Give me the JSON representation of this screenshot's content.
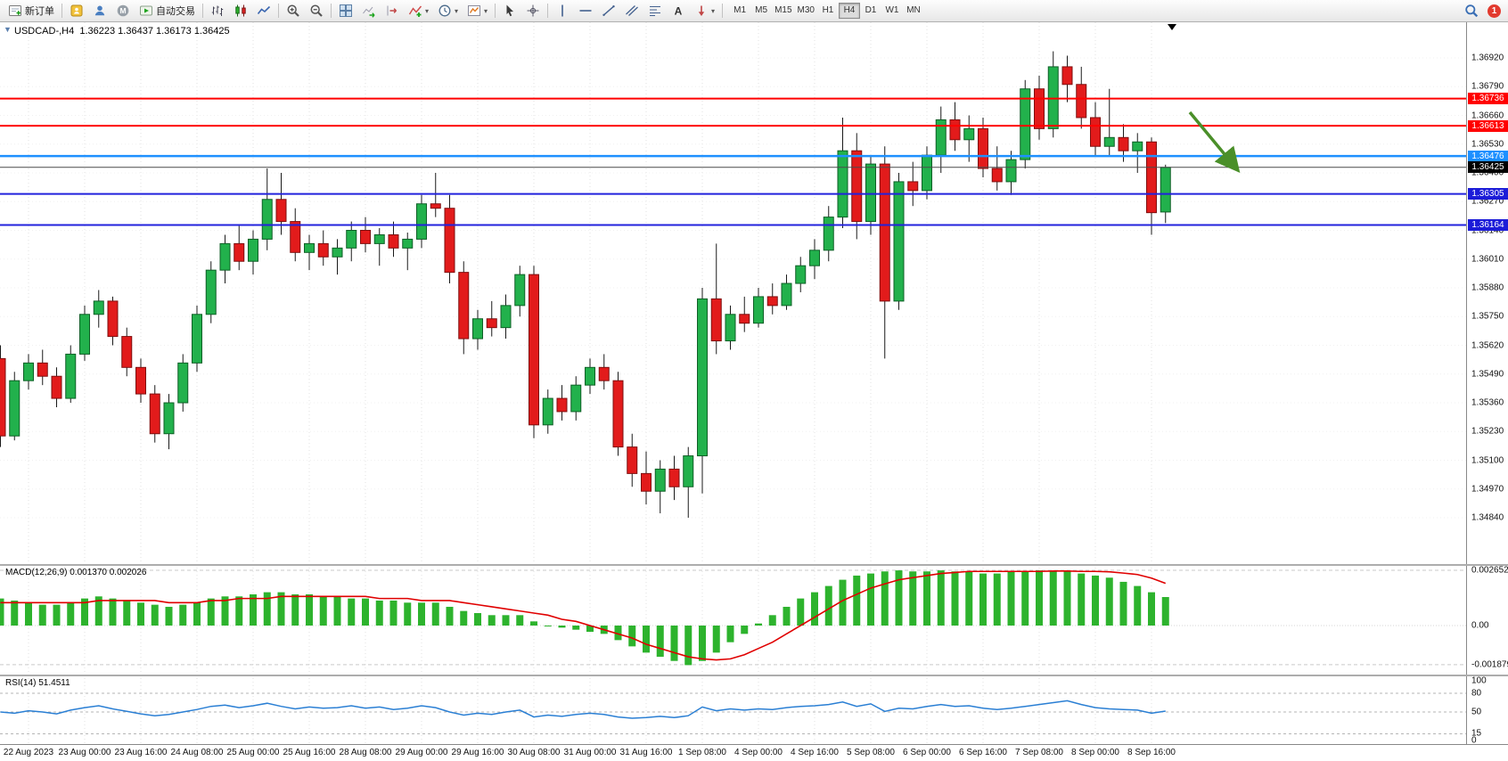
{
  "toolbar": {
    "buttons": [
      {
        "name": "new-order-button",
        "icon": "new-order",
        "label": "新订单"
      },
      {
        "name": "separator"
      },
      {
        "name": "account-button",
        "icon": "account"
      },
      {
        "name": "community-button",
        "icon": "community"
      },
      {
        "name": "mql5-button",
        "icon": "mql5"
      },
      {
        "name": "algo-trading-button",
        "icon": "algo",
        "label": "自动交易"
      },
      {
        "name": "separator"
      },
      {
        "name": "bar-chart-button",
        "icon": "bars"
      },
      {
        "name": "candlestick-chart-button",
        "icon": "candles"
      },
      {
        "name": "line-chart-button",
        "icon": "line"
      },
      {
        "name": "separator"
      },
      {
        "name": "zoom-in-button",
        "icon": "zoom-in"
      },
      {
        "name": "zoom-out-button",
        "icon": "zoom-out"
      },
      {
        "name": "separator"
      },
      {
        "name": "tile-windows-button",
        "icon": "tile"
      },
      {
        "name": "auto-scroll-button",
        "icon": "autoscroll"
      },
      {
        "name": "chart-shift-button",
        "icon": "shift"
      },
      {
        "name": "indicators-button",
        "icon": "indicators",
        "caret": true
      },
      {
        "name": "periods-button",
        "icon": "clock",
        "caret": true
      },
      {
        "name": "templates-button",
        "icon": "template",
        "caret": true
      },
      {
        "name": "separator"
      },
      {
        "name": "cursor-button",
        "icon": "cursor"
      },
      {
        "name": "crosshair-button",
        "icon": "crosshair"
      },
      {
        "name": "separator"
      },
      {
        "name": "vertical-line-button",
        "icon": "vline"
      },
      {
        "name": "horizontal-line-button",
        "icon": "hline"
      },
      {
        "name": "trendline-button",
        "icon": "trend"
      },
      {
        "name": "equidistant-channel-button",
        "icon": "channel"
      },
      {
        "name": "fibonacci-button",
        "icon": "fibo"
      },
      {
        "name": "text-button",
        "icon": "text"
      },
      {
        "name": "arrows-button",
        "icon": "arrows",
        "caret": true
      },
      {
        "name": "separator"
      }
    ],
    "timeframes": [
      "M1",
      "M5",
      "M15",
      "M30",
      "H1",
      "H4",
      "D1",
      "W1",
      "MN"
    ],
    "active_timeframe": "H4",
    "notifications": {
      "count": "1"
    }
  },
  "chart": {
    "title": "USDCAD-,H4",
    "ohlc_text": "1.36223 1.36437 1.36173 1.36425",
    "one_click_toggle": "▼"
  },
  "panels": {
    "macd_label": "MACD(12,26,9) 0.001370 0.002026",
    "rsi_label": "RSI(14) 51.4511"
  },
  "chart_data": {
    "type": "candlestick",
    "symbol": "USDCAD",
    "period": "H4",
    "current_bar_ohlc": {
      "open": 1.36223,
      "high": 1.36437,
      "low": 1.36173,
      "close": 1.36425
    },
    "price_axis_ticks": [
      "1.36920",
      "1.36790",
      "1.36660",
      "1.36530",
      "1.36400",
      "1.36270",
      "1.36140",
      "1.36010",
      "1.35880",
      "1.35750",
      "1.35620",
      "1.35490",
      "1.35360",
      "1.35230",
      "1.35100",
      "1.34970",
      "1.34840"
    ],
    "time_axis_ticks": [
      "22 Aug 2023",
      "23 Aug 00:00",
      "23 Aug 16:00",
      "24 Aug 08:00",
      "25 Aug 00:00",
      "25 Aug 16:00",
      "28 Aug 08:00",
      "29 Aug 00:00",
      "29 Aug 16:00",
      "30 Aug 08:00",
      "31 Aug 00:00",
      "31 Aug 16:00",
      "1 Sep 08:00",
      "4 Sep 00:00",
      "4 Sep 16:00",
      "5 Sep 08:00",
      "6 Sep 00:00",
      "6 Sep 16:00",
      "7 Sep 08:00",
      "8 Sep 00:00",
      "8 Sep 16:00"
    ],
    "candles": [
      [
        1.3556,
        1.3562,
        1.3516,
        1.3521
      ],
      [
        1.3521,
        1.355,
        1.3519,
        1.3546
      ],
      [
        1.3546,
        1.3558,
        1.3542,
        1.3554
      ],
      [
        1.3554,
        1.356,
        1.3544,
        1.3548
      ],
      [
        1.3548,
        1.3552,
        1.3534,
        1.3538
      ],
      [
        1.3538,
        1.3562,
        1.3536,
        1.3558
      ],
      [
        1.3558,
        1.358,
        1.3555,
        1.3576
      ],
      [
        1.3576,
        1.3587,
        1.357,
        1.3582
      ],
      [
        1.3582,
        1.3584,
        1.3562,
        1.3566
      ],
      [
        1.3566,
        1.357,
        1.3548,
        1.3552
      ],
      [
        1.3552,
        1.3556,
        1.3536,
        1.354
      ],
      [
        1.354,
        1.3544,
        1.3518,
        1.3522
      ],
      [
        1.3522,
        1.354,
        1.3515,
        1.3536
      ],
      [
        1.3536,
        1.3558,
        1.3532,
        1.3554
      ],
      [
        1.3554,
        1.358,
        1.355,
        1.3576
      ],
      [
        1.3576,
        1.36,
        1.3572,
        1.3596
      ],
      [
        1.3596,
        1.3612,
        1.359,
        1.3608
      ],
      [
        1.3608,
        1.3616,
        1.3596,
        1.36
      ],
      [
        1.36,
        1.3614,
        1.3594,
        1.361
      ],
      [
        1.361,
        1.3642,
        1.3605,
        1.3628
      ],
      [
        1.3628,
        1.364,
        1.3612,
        1.3618
      ],
      [
        1.3618,
        1.3624,
        1.36,
        1.3604
      ],
      [
        1.3604,
        1.3612,
        1.3596,
        1.3608
      ],
      [
        1.3608,
        1.3614,
        1.3598,
        1.3602
      ],
      [
        1.3602,
        1.361,
        1.3594,
        1.3606
      ],
      [
        1.3606,
        1.3618,
        1.36,
        1.3614
      ],
      [
        1.3614,
        1.362,
        1.3604,
        1.3608
      ],
      [
        1.3608,
        1.3615,
        1.3598,
        1.3612
      ],
      [
        1.3612,
        1.3618,
        1.3602,
        1.3606
      ],
      [
        1.3606,
        1.3613,
        1.3596,
        1.361
      ],
      [
        1.361,
        1.363,
        1.3606,
        1.3626
      ],
      [
        1.3626,
        1.364,
        1.362,
        1.3624
      ],
      [
        1.3624,
        1.363,
        1.359,
        1.3595
      ],
      [
        1.3595,
        1.36,
        1.3558,
        1.3565
      ],
      [
        1.3565,
        1.3578,
        1.356,
        1.3574
      ],
      [
        1.3574,
        1.3582,
        1.3566,
        1.357
      ],
      [
        1.357,
        1.3585,
        1.3565,
        1.358
      ],
      [
        1.358,
        1.3598,
        1.3575,
        1.3594
      ],
      [
        1.3594,
        1.3598,
        1.352,
        1.3526
      ],
      [
        1.3526,
        1.3542,
        1.3522,
        1.3538
      ],
      [
        1.3538,
        1.3544,
        1.3528,
        1.3532
      ],
      [
        1.3532,
        1.3548,
        1.3528,
        1.3544
      ],
      [
        1.3544,
        1.3556,
        1.354,
        1.3552
      ],
      [
        1.3552,
        1.3558,
        1.3542,
        1.3546
      ],
      [
        1.3546,
        1.355,
        1.3512,
        1.3516
      ],
      [
        1.3516,
        1.3522,
        1.3498,
        1.3504
      ],
      [
        1.3504,
        1.3514,
        1.349,
        1.3496
      ],
      [
        1.3496,
        1.351,
        1.3486,
        1.3506
      ],
      [
        1.3506,
        1.3512,
        1.3492,
        1.3498
      ],
      [
        1.3498,
        1.3516,
        1.3484,
        1.3512
      ],
      [
        1.3512,
        1.3588,
        1.3495,
        1.3583
      ],
      [
        1.3583,
        1.3608,
        1.3558,
        1.3564
      ],
      [
        1.3564,
        1.358,
        1.356,
        1.3576
      ],
      [
        1.3576,
        1.3584,
        1.3568,
        1.3572
      ],
      [
        1.3572,
        1.3588,
        1.357,
        1.3584
      ],
      [
        1.3584,
        1.359,
        1.3576,
        1.358
      ],
      [
        1.358,
        1.3594,
        1.3578,
        1.359
      ],
      [
        1.359,
        1.3602,
        1.3586,
        1.3598
      ],
      [
        1.3598,
        1.361,
        1.3592,
        1.3605
      ],
      [
        1.3605,
        1.3625,
        1.36,
        1.362
      ],
      [
        1.362,
        1.3665,
        1.3615,
        1.365
      ],
      [
        1.365,
        1.3658,
        1.361,
        1.3618
      ],
      [
        1.3618,
        1.3648,
        1.3612,
        1.3644
      ],
      [
        1.3644,
        1.3652,
        1.3556,
        1.3582
      ],
      [
        1.3582,
        1.364,
        1.3578,
        1.3636
      ],
      [
        1.3636,
        1.3645,
        1.3625,
        1.3632
      ],
      [
        1.3632,
        1.3652,
        1.3628,
        1.3648
      ],
      [
        1.3648,
        1.367,
        1.364,
        1.3664
      ],
      [
        1.3664,
        1.3672,
        1.365,
        1.3655
      ],
      [
        1.3655,
        1.3666,
        1.3645,
        1.366
      ],
      [
        1.366,
        1.3665,
        1.3638,
        1.3642
      ],
      [
        1.3642,
        1.3652,
        1.3632,
        1.3636
      ],
      [
        1.3636,
        1.365,
        1.363,
        1.3646
      ],
      [
        1.3646,
        1.3682,
        1.3642,
        1.3678
      ],
      [
        1.3678,
        1.3684,
        1.3655,
        1.366
      ],
      [
        1.366,
        1.3695,
        1.3656,
        1.3688
      ],
      [
        1.3688,
        1.3693,
        1.3672,
        1.368
      ],
      [
        1.368,
        1.3688,
        1.366,
        1.3665
      ],
      [
        1.3665,
        1.3672,
        1.3648,
        1.3652
      ],
      [
        1.3652,
        1.3678,
        1.3648,
        1.3656
      ],
      [
        1.3656,
        1.3662,
        1.3645,
        1.365
      ],
      [
        1.365,
        1.3658,
        1.364,
        1.3654
      ],
      [
        1.3654,
        1.3656,
        1.3612,
        1.3622
      ],
      [
        1.36223,
        1.36437,
        1.36173,
        1.36425
      ]
    ],
    "levels": [
      {
        "price": 1.36736,
        "label": "1.36736",
        "style": "red"
      },
      {
        "price": 1.36613,
        "label": "1.36613",
        "style": "red"
      },
      {
        "price": 1.36476,
        "label": "1.36476",
        "style": "dodger"
      },
      {
        "price": 1.36305,
        "label": "1.36305",
        "style": "blue"
      },
      {
        "price": 1.36164,
        "label": "1.36164",
        "style": "blue"
      }
    ],
    "current_price": {
      "price": 1.36425,
      "label": "1.36425",
      "style": "black"
    },
    "annotation_arrow": {
      "direction": "down-right",
      "color": "#4a8f29"
    },
    "indicators": [
      {
        "name": "MACD",
        "params": "12,26,9",
        "values_label": "0.001370 0.002026",
        "axis_labels": [
          "0.002652",
          "0.00",
          "-0.001879"
        ],
        "histogram": [
          0.0013,
          0.0012,
          0.0011,
          0.001,
          0.001,
          0.0011,
          0.0013,
          0.0014,
          0.0013,
          0.0012,
          0.0011,
          0.001,
          0.0009,
          0.001,
          0.0011,
          0.0013,
          0.0014,
          0.0014,
          0.0015,
          0.0016,
          0.0016,
          0.0015,
          0.0015,
          0.0014,
          0.0014,
          0.0013,
          0.0013,
          0.0012,
          0.0012,
          0.0011,
          0.0011,
          0.0011,
          0.0009,
          0.0007,
          0.0006,
          0.0005,
          0.0005,
          0.0005,
          0.0002,
          0.0,
          -0.0001,
          -0.0002,
          -0.0003,
          -0.0004,
          -0.0007,
          -0.001,
          -0.0013,
          -0.0015,
          -0.0017,
          -0.0019,
          -0.0017,
          -0.0013,
          -0.0008,
          -0.0004,
          0.0001,
          0.0005,
          0.0009,
          0.0013,
          0.0016,
          0.0019,
          0.0022,
          0.0024,
          0.0025,
          0.0026,
          0.00265,
          0.0026,
          0.0026,
          0.00265,
          0.0026,
          0.0026,
          0.0025,
          0.0025,
          0.0026,
          0.0026,
          0.00265,
          0.0026,
          0.0026,
          0.0025,
          0.0024,
          0.0023,
          0.0021,
          0.0019,
          0.0016,
          0.00137
        ],
        "signal": [
          0.0011,
          0.0011,
          0.0011,
          0.0011,
          0.0011,
          0.0011,
          0.0011,
          0.0012,
          0.0012,
          0.0012,
          0.0012,
          0.0012,
          0.0011,
          0.0011,
          0.0011,
          0.0012,
          0.0012,
          0.0013,
          0.0013,
          0.0013,
          0.0014,
          0.0014,
          0.0014,
          0.0014,
          0.0014,
          0.0014,
          0.0014,
          0.0013,
          0.0013,
          0.0013,
          0.0012,
          0.0012,
          0.0012,
          0.0011,
          0.001,
          0.0009,
          0.0008,
          0.0007,
          0.0006,
          0.0005,
          0.0003,
          0.0002,
          0.0,
          -0.0002,
          -0.0004,
          -0.0006,
          -0.0009,
          -0.0011,
          -0.0013,
          -0.0015,
          -0.0016,
          -0.00165,
          -0.0016,
          -0.0014,
          -0.0011,
          -0.0008,
          -0.0004,
          0.0,
          0.0004,
          0.0008,
          0.0012,
          0.0015,
          0.0018,
          0.002,
          0.0022,
          0.0023,
          0.0024,
          0.0025,
          0.00255,
          0.0026,
          0.0026,
          0.0026,
          0.0026,
          0.0026,
          0.0026,
          0.00262,
          0.00262,
          0.0026,
          0.0026,
          0.00258,
          0.00252,
          0.00245,
          0.00228,
          0.00203
        ]
      },
      {
        "name": "RSI",
        "params": "14",
        "value": 51.4511,
        "axis_labels": [
          "100",
          "80",
          "50",
          "15",
          "0"
        ],
        "levels": [
          80,
          50,
          15
        ],
        "values": [
          50,
          48,
          52,
          50,
          47,
          53,
          57,
          60,
          55,
          51,
          47,
          44,
          46,
          50,
          54,
          59,
          61,
          57,
          60,
          64,
          59,
          55,
          58,
          56,
          57,
          60,
          56,
          58,
          54,
          56,
          60,
          57,
          50,
          45,
          48,
          46,
          50,
          53,
          42,
          45,
          43,
          46,
          48,
          46,
          42,
          40,
          41,
          43,
          41,
          44,
          58,
          52,
          55,
          53,
          55,
          54,
          57,
          59,
          60,
          62,
          66,
          59,
          63,
          51,
          56,
          55,
          59,
          62,
          59,
          60,
          56,
          54,
          56,
          59,
          62,
          65,
          68,
          62,
          57,
          55,
          54,
          53,
          48,
          51.45
        ]
      }
    ]
  }
}
